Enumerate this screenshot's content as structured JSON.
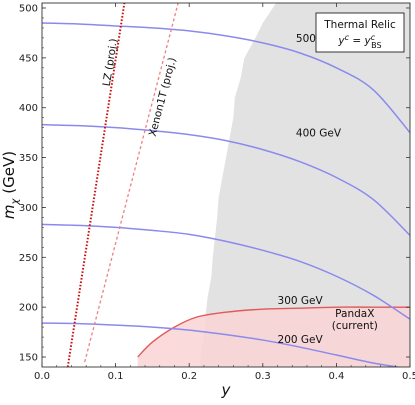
{
  "chart_data": {
    "type": "line",
    "xlabel": "y",
    "ylabel_main": "m",
    "ylabel_sub": "χ",
    "ylabel_unit": " (GeV)",
    "xlim": [
      0.0,
      0.5
    ],
    "ylim": [
      140,
      505
    ],
    "xticks": [
      0.0,
      0.1,
      0.2,
      0.3,
      0.4,
      0.5
    ],
    "xtick_labels": [
      "0.0",
      "0.1",
      "0.2",
      "0.3",
      "0.4",
      "0.5"
    ],
    "yticks": [
      150,
      200,
      250,
      300,
      350,
      400,
      450,
      500
    ],
    "ytick_labels": [
      "150",
      "200",
      "250",
      "300",
      "350",
      "400",
      "450",
      "500"
    ],
    "colors": {
      "contour": "#8a8aee",
      "excluded_gray": "#e2e2e2",
      "pandax_fill": "#f9d4d4",
      "pandax_edge": "#e05a5a",
      "lz": "#cc1111",
      "xenon": "#f08080"
    },
    "legend": {
      "line1": "Thermal Relic",
      "line2_parts": [
        "y",
        "c",
        " = y",
        "c",
        "BS"
      ]
    },
    "series": [
      {
        "name": "500 GeV",
        "x": [
          0,
          0.05,
          0.1,
          0.15,
          0.2,
          0.25,
          0.3,
          0.35,
          0.4,
          0.45,
          0.5
        ],
        "values": [
          485,
          484,
          482,
          480,
          477,
          472,
          465,
          455,
          440,
          418,
          375
        ]
      },
      {
        "name": "400 GeV",
        "x": [
          0,
          0.05,
          0.1,
          0.15,
          0.2,
          0.25,
          0.3,
          0.35,
          0.4,
          0.45,
          0.5
        ],
        "values": [
          383,
          382,
          380,
          377,
          373,
          367,
          358,
          346,
          330,
          308,
          272
        ]
      },
      {
        "name": "300 GeV",
        "x": [
          0,
          0.05,
          0.1,
          0.15,
          0.2,
          0.25,
          0.3,
          0.35,
          0.4,
          0.45,
          0.5
        ],
        "values": [
          283,
          282,
          280,
          277,
          273,
          266,
          257,
          246,
          231,
          212,
          188
        ]
      },
      {
        "name": "200 GeV",
        "x": [
          0,
          0.05,
          0.1,
          0.15,
          0.2,
          0.25,
          0.3,
          0.35,
          0.4,
          0.45,
          0.5
        ],
        "values": [
          184,
          183.5,
          182,
          180,
          177,
          172.5,
          167,
          160,
          152,
          144,
          138
        ]
      }
    ],
    "curve_labels": [
      {
        "text": "500 GeV",
        "x": 0.345,
        "y": 466
      },
      {
        "text": "400 GeV",
        "x": 0.345,
        "y": 371
      },
      {
        "text": "300 GeV",
        "x": 0.32,
        "y": 203
      },
      {
        "text": "200 GeV",
        "x": 0.32,
        "y": 164
      }
    ],
    "pandax": {
      "name_line1": "PandaX",
      "name_line2": "(current)",
      "label_x": 0.425,
      "label_y": 190,
      "upper_x": [
        0.13,
        0.15,
        0.18,
        0.21,
        0.25,
        0.3,
        0.35,
        0.4,
        0.45,
        0.5
      ],
      "upper_y": [
        150,
        165,
        180,
        190,
        195,
        198,
        199,
        200,
        200,
        200
      ],
      "lower_x": [
        0.13,
        0.2,
        0.3,
        0.4,
        0.5
      ],
      "lower_y": [
        140,
        140,
        140,
        140,
        140
      ]
    },
    "excluded_region": {
      "boundary_x": [
        0.318,
        0.3,
        0.29,
        0.275,
        0.27,
        0.262,
        0.26,
        0.255,
        0.25,
        0.245,
        0.24,
        0.238,
        0.235,
        0.232,
        0.23,
        0.225,
        0.222,
        0.22,
        0.215,
        0.215
      ],
      "boundary_y": [
        505,
        485,
        470,
        450,
        430,
        410,
        390,
        370,
        350,
        330,
        310,
        290,
        270,
        250,
        230,
        210,
        190,
        170,
        150,
        140
      ]
    },
    "projections": [
      {
        "name": "LZ (proj.)",
        "x": [
          0.035,
          0.112
        ],
        "y": [
          140,
          505
        ],
        "label_x": 0.097,
        "label_y": 445,
        "style": "dotted"
      },
      {
        "name": "Xenon1T (proj.)",
        "x": [
          0.058,
          0.185
        ],
        "y": [
          145,
          505
        ],
        "label_x": 0.168,
        "label_y": 410,
        "style": "dashed"
      }
    ]
  }
}
